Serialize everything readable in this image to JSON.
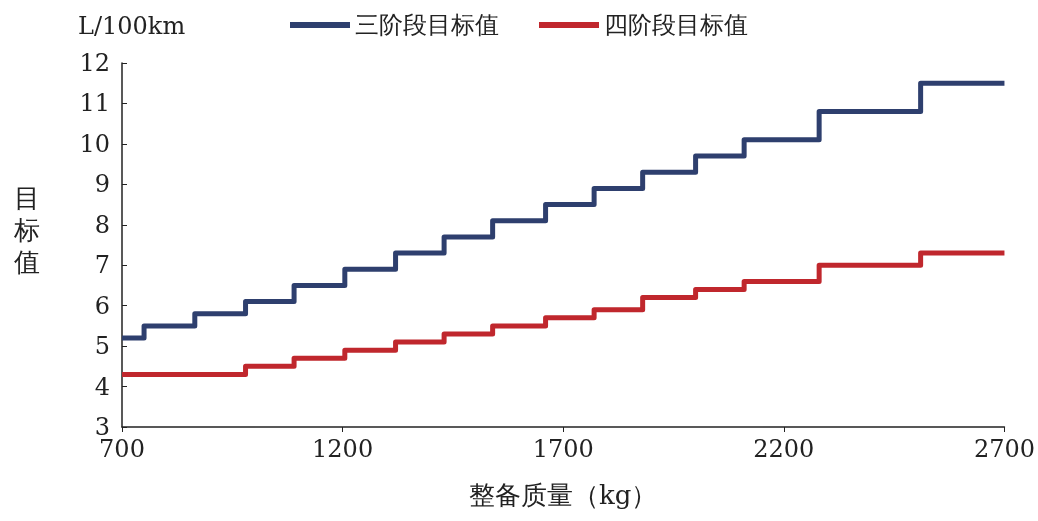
{
  "chart_data": {
    "type": "step",
    "xlabel": "整备质量（kg）",
    "ylabel": "目标值",
    "annotations": [
      "L/100km"
    ],
    "x": [
      700,
      750,
      865,
      980,
      1090,
      1205,
      1320,
      1430,
      1540,
      1660,
      1770,
      1880,
      2000,
      2110,
      2280,
      2510,
      2700
    ],
    "series": [
      {
        "name": "三阶段目标值",
        "color": "#2e3f6e",
        "values": [
          5.2,
          5.5,
          5.8,
          6.1,
          6.5,
          6.9,
          7.3,
          7.7,
          8.1,
          8.5,
          8.9,
          9.3,
          9.7,
          10.1,
          10.8,
          11.5,
          11.5
        ]
      },
      {
        "name": "四阶段目标值",
        "color": "#c0272d",
        "values": [
          4.3,
          4.3,
          4.3,
          4.5,
          4.7,
          4.9,
          5.1,
          5.3,
          5.5,
          5.7,
          5.9,
          6.2,
          6.4,
          6.6,
          7.0,
          7.3,
          7.3
        ]
      }
    ],
    "xlim": [
      700,
      2700
    ],
    "xticks": [
      700,
      1200,
      1700,
      2200,
      2700
    ],
    "ylim": [
      3,
      12
    ],
    "yticks": [
      3,
      4,
      5,
      6,
      7,
      8,
      9,
      10,
      11,
      12
    ],
    "grid": false,
    "legend": "top",
    "marker": "none",
    "line_style": "solid"
  }
}
